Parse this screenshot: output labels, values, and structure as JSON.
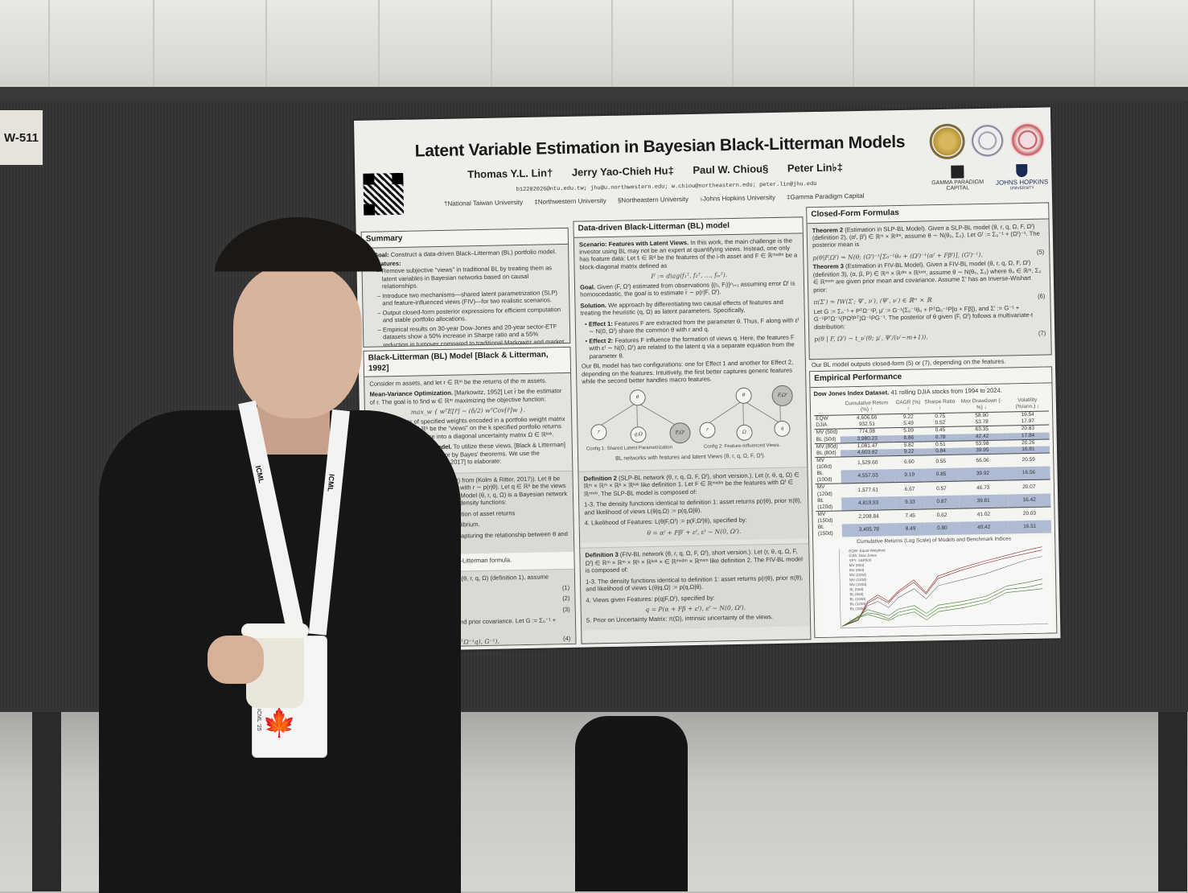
{
  "scene": {
    "description": "Researcher standing beside an academic poster at a conference poster session",
    "booth_tag": "W-511",
    "lanyard_text": "ICML",
    "badge_year": "ICML '25"
  },
  "poster": {
    "title": "Latent Variable Estimation in Bayesian Black-Litterman Models",
    "authors": [
      "Thomas Y.L. Lin†",
      "Jerry Yao-Chieh Hu‡",
      "Paul W. Chiou§",
      "Peter Lin♭‡"
    ],
    "emails": "b12202026@ntu.edu.tw;  jhu@u.northwestern.edu;  w.chiou@northeastern.edu;  peter.lin@jhu.edu",
    "affiliations": [
      "†National Taiwan University",
      "‡Northwestern University",
      "§Northeastern University",
      "♭Johns Hopkins University",
      "‡Gamma Paradigm Capital"
    ],
    "logos": {
      "gamma": "GAMMA PARADIGM",
      "gamma_sub": "CAPITAL",
      "jhu": "JOHNS HOPKINS",
      "jhu_sub": "UNIVERSITY"
    },
    "summary": {
      "heading": "Summary",
      "goal_label": "Goal:",
      "goal": "Construct a data-driven Black–Litterman (BL) portfolio model.",
      "features_label": "Features:",
      "features": [
        "Remove subjective \"views\" in traditional BL by treating them as latent variables in Bayesian networks based on causal relationships.",
        "Introduce two mechanisms—shared latent parametrization (SLP) and feature-influenced views (FIV)—for two realistic scenarios.",
        "Output closed-form posterior expressions for efficient computation and stable portfolio allocations.",
        "Empirical results on 30-year Dow-Jones and 20-year sector-ETF datasets show a 50% increase in Sharpe ratio and a 55% reduction in turnover compared to traditional Markowitz and market index."
      ]
    },
    "bl_model": {
      "heading": "Black-Litterman (BL) Model [Black & Litterman, 1992]",
      "intro": "Consider m assets, and let r ∈ ℝᵐ be the returns of the m assets.",
      "mvo_label": "Mean-Variance Optimization.",
      "mvo": "[Markowitz, 1952] Let r̄ be the estimator of r. The goal is to find w ∈ ℝᵐ maximizing the objective function:",
      "mvo_eq": "max_w { wᵀE[r̄] − (δ/2) wᵀCov[r̄]w }.",
      "views": "Consider k sets of specified weights encoded in a portfolio weight matrix P ∈ ℝᵏˣᵐ. Let q ∈ ℝᵏ be the \"views\" on the k specified portfolio returns and encode its variance into a diagonal uncertainty matrix Ω ∈ ℝᵏˣᵏ.",
      "bl_label": "Black-Litterman (BL) Model.",
      "bl": "To utilize these views, [Black & Litterman] propose a posterior estimator by Bayes' theorems. We use the formulation of [Kolm & Ritter, 2017] to elaborate:",
      "def1": "Definition 1 (BL model (θ, r, q, Ω) from (Kolm & Ritter, 2017)). Let θ be the mean of asset return r ∈ ℝᵐ with r ∼ p(r|θ). Let q ∈ ℝᵏ be the views and Ω the uncertainty matrix. BL Model (θ, r, q, Ω) is a Bayesian network composed of three fundamental density functions:",
      "def1_items": [
        "Asset Returns: p(r|θ), the distribution of asset returns",
        "Prior π(θ), reflecting market equilibrium.",
        "Likelihood L(θ|q,Ω) := p(q,Ω|θ), capturing the relationship between θ and the views."
      ],
      "formula_note": "This yields the well-known Black-Litterman formula.",
      "thm1": "Theorem 1. Given the BL model (θ, r, q, Ω) (definition 1), assume",
      "eqs": [
        {
          "eq": "r ∼ N(θ, Σ),",
          "num": "(1)"
        },
        {
          "eq": "θ ∼ N(θ₀, Σ₀),",
          "num": "(2)"
        },
        {
          "eq": "Pθ = q + ε,   ε ∼ N(0, Ω),",
          "num": "(3)"
        }
      ],
      "thm1_tail": "where Σ, Σ₀ are given intrinsic and prior covariance. Let G := Σ₀⁻¹ + PᵀΩ⁻¹P. The posterior mean is",
      "eq4": "p(θ|q,Ω) = N(G⁻¹(Σ₀⁻¹θ₀ + PᵀΩ⁻¹q), G⁻¹).",
      "eq4_num": "(4)"
    },
    "data_driven": {
      "heading": "Data-driven Black-Litterman (BL) model",
      "scenario_label": "Scenario: Features with Latent Views.",
      "scenario": "In this work, the main challenge is the investor using BL may not be an expert at quantifying views. Instead, one only has feature data: Let fᵢ ∈ ℝᵈ be the features of the i-th asset and F ∈ ℝᵐˣᵈᵐ be a block-diagonal matrix defined as",
      "scenario_eq": "F := diag(f₁ᵀ, f₂ᵀ, …, fₘᵀ).",
      "goal_label": "Goal.",
      "goal": "Given (F, Ωᶠ) estimated from observations {(rᵢ, Fᵢ)}ⁿᵢ₌₁ assuming error Ωᶠ is homoscedastic, the goal is to estimate r̄ ∼ p(r|F, Ωᶠ).",
      "solution_label": "Solution.",
      "solution": "We approach by differentiating two causal effects of features and treating the heuristic (q, Ω) as latent parameters. Specifically,",
      "effects": [
        {
          "label": "Effect 1:",
          "text": "Features F are extracted from the parameter θ. Thus, F along with εᶠ ∼ N(0, Ωᶠ) share the common θ with r and q."
        },
        {
          "label": "Effect 2:",
          "text": "Features F influence the formation of views q. Here, the features F with εᶠ ∼ N(0, Ωᶠ) are related to the latent q via a separate equation from the parameter θ."
        }
      ],
      "configs": "Our BL model has two configurations: one for Effect 1 and another for Effect 2, depending on the features. Intuitively, the first better captures generic features while the second better handles macro features.",
      "diagram": {
        "config1_nodes": [
          "θ",
          "r",
          "q,Ω",
          "F,Ωᶠ"
        ],
        "config2_nodes": [
          "θ",
          "F,Ωᶠ",
          "r",
          "Ω",
          "q"
        ],
        "config1_caption": "Config 1: Shared Latent Parametrization",
        "config2_caption": "Config 2: Feature-Influenced Views.",
        "caption": "BL networks with features and latent Views (θ, r, q, Ω, F, Ωᶠ)."
      },
      "def2": {
        "label": "Definition 2",
        "title": "(SLP-BL network (θ, r, q, Ω, F, Ωᶠ), short version.).",
        "text": "Let (r, θ, q, Ω) ∈ ℝᵐ × ℝᵐ × ℝᵏ × ℝᵏˣᵏ like definition 1. Let F ∈ ℝᵐˣᵈᵐ be the features with Ωᶠ ∈ ℝᵐˣᵐ. The SLP-BL model is composed of:",
        "items": [
          "1-3. The density functions identical to definition 1: asset returns p(r|θ), prior π(θ), and likelihood of views L(θ|q,Ω) := p(q,Ω|θ).",
          "4. Likelihood of Features: L(θ|F,Ωᶠ) := p(F,Ωᶠ|θ), specified by:"
        ],
        "eq": "θ = αᶠ + Fβᶠ + εᶠ,   εᶠ ∼ N(0, Ωᶠ)."
      },
      "def3": {
        "label": "Definition 3",
        "title": "(FIV-BL network (θ, r, q, Ω, F, Ωᶠ), short version.).",
        "text": "Let (r, θ, q, Ω, F, Ωᶠ) ∈ ℝᵐ × ℝᵐ × ℝᵏ × ℝᵏˣᵏ × ∈ ℝᵐˣᵈᵐ × ℝᵐˣᵐ like definition 2. The FIV-BL model is composed of:",
        "items": [
          "1-3. The density functions identical to definition 1: asset returns p(r|θ), prior π(θ), and likelihood of views L(θ|q,Ω) := p(q,Ω|θ).",
          "4. Views given Features: p(q|F,Ωᶠ), specified by:",
          "5. Prior on Uncertainty Matrix: π(Ω), intrinsic uncertainty of the views."
        ],
        "eq": "q = P(α + Fβ + εᶠ),   εᶠ ∼ N(0, Ωᶠ)."
      }
    },
    "closed_form": {
      "heading": "Closed-Form Formulas",
      "thm2_label": "Theorem 2",
      "thm2": "(Estimation in SLP-BL Model). Given a SLP-BL model (θ, r, q, Ω, F, Ωᶠ) (definition 2), (αᶠ, βᶠ) ∈ ℝᵐ × ℝᵈᵐ, assume θ ∼ N(θ₀, Σ₀). Let Gᶠ := Σ₀⁻¹ + (Ωᶠ)⁻¹. The posterior mean is",
      "eq5": "p(θ|F,Ωᶠ) = N(θ; (Gᶠ)⁻¹[Σ₀⁻¹θ₀ + (Ωᶠ)⁻¹(αᶠ + Fβᶠ)], (Gᶠ)⁻¹).",
      "eq5_num": "(5)",
      "thm3_label": "Theorem 3",
      "thm3": "(Estimation in FIV-BL Model). Given a FIV-BL model (θ, r, q, Ω, F, Ωᶠ) (definition 3), (α, β, P) ∈ ℝᵐ × ℝᵈᵐ × ℝᵏˣᵐ, assume θ ∼ N(θ₀, Σ₀) where θ₀ ∈ ℝᵐ, Σ₀ ∈ ℝᵐˣᵐ are given prior mean and covariance. Assume Σ′ has an Inverse-Wishart prior:",
      "eq6": "π(Σ′) = IW(Σ′; Ψ′, ν′),   (Ψ′, ν′) ∈ ℝᵐ × ℝ",
      "eq6_num": "(6)",
      "thm3_mid": "Let G := Σ₀⁻¹ + PᵀΩ⁻¹P, μ′ := G⁻¹(Σ₀⁻¹θ₀ + PᵀΩ₀⁻¹P[α + Fβ]), and Σ′ := G⁻¹ + G⁻¹PᵀΩ⁻¹(PΩᶠPᵀ)Ω⁻¹PG⁻¹. The posterior of θ given (F, Ωᶠ) follows a multivariate-t distribution:",
      "eq7": "p(θ | F, Ωᶠ) ∼ t_ν′(θ; μ′, Ψ′/(ν′−m+1)).",
      "eq7_num": "(7)",
      "note": "Our BL model outputs closed-form (5) or (7), depending on the features."
    },
    "empirical": {
      "heading": "Empirical Performance",
      "dataset_label": "Dow Jones Index Dataset.",
      "dataset": "41 rolling DJIA stocks from 1994 to 2024.",
      "columns": [
        "",
        "Cumulative Return (%) ↑",
        "CAGR (%) ↑",
        "Sharpe Ratio ↑",
        "Max Drawdown (-%) ↓",
        "Volatility (%/ann.) ↓"
      ],
      "groups": [
        [
          {
            "name": "EQW",
            "values": [
              "4,606.66",
              "9.22",
              "0.75",
              "58.90",
              "19.54"
            ],
            "highlight": false
          },
          {
            "name": "DJIA",
            "values": [
              "932.51",
              "5.49",
              "0.52",
              "53.78",
              "17.97"
            ],
            "highlight": false
          }
        ],
        [
          {
            "name": "MV (50d)",
            "values": [
              "774.08",
              "5.09",
              "0.45",
              "63.35",
              "20.83"
            ],
            "highlight": false
          },
          {
            "name": "BL (50d)",
            "values": [
              "3,980.23",
              "8.86",
              "0.78",
              "42.42",
              "17.84"
            ],
            "highlight": true
          }
        ],
        [
          {
            "name": "MV (80d)",
            "values": [
              "1,081.47",
              "5.82",
              "0.51",
              "53.98",
              "20.26"
            ],
            "highlight": false
          },
          {
            "name": "BL (80d)",
            "values": [
              "4,603.82",
              "9.22",
              "0.84",
              "39.95",
              "16.81"
            ],
            "highlight": true
          }
        ],
        [
          {
            "name": "MV (100d)",
            "values": [
              "1,529.60",
              "6.60",
              "0.55",
              "56.06",
              "20.59"
            ],
            "highlight": false
          },
          {
            "name": "BL (100d)",
            "values": [
              "4,557.03",
              "9.19",
              "0.85",
              "39.92",
              "16.56"
            ],
            "highlight": true
          }
        ],
        [
          {
            "name": "MV (120d)",
            "values": [
              "1,577.61",
              "6.67",
              "0.57",
              "46.73",
              "20.07"
            ],
            "highlight": false
          },
          {
            "name": "BL (120d)",
            "values": [
              "4,819.83",
              "9.33",
              "0.87",
              "39.81",
              "16.42"
            ],
            "highlight": true
          }
        ],
        [
          {
            "name": "MV (150d)",
            "values": [
              "2,208.84",
              "7.45",
              "0.62",
              "41.02",
              "20.03"
            ],
            "highlight": false
          },
          {
            "name": "BL (150d)",
            "values": [
              "3,405.78",
              "8.49",
              "0.80",
              "40.42",
              "16.51"
            ],
            "highlight": true
          }
        ]
      ],
      "chart": {
        "title": "Cumulative Returns (Log Scale) of Models and Benchmark Indices",
        "ylabel": "Cumulative Return (%)",
        "xlabel": "Date",
        "yticks": [
          "5309.8%",
          "3211.5%",
          "1908.6%",
          "1118.2%",
          "639.9%",
          "348.2%",
          "171.8%",
          "64.9%",
          "0.0%"
        ],
        "xticks": [
          "1996",
          "2000",
          "2004",
          "2008",
          "2012",
          "2016",
          "2020",
          "2024"
        ],
        "legend": [
          "EQW: Equal-Weighted",
          "DJIA: Dow Jones",
          "SPY: S&P500",
          "MV (50d)",
          "MV (80d)",
          "MV (100d)",
          "MV (120d)",
          "MV (150d)",
          "BL (50d)",
          "BL (80d)",
          "BL (100d)",
          "BL (120d)",
          "BL (150d)"
        ]
      }
    }
  },
  "colors": {
    "poster_bg": "#eeeeea",
    "board": "#343434",
    "table_highlight": "#aebbd2",
    "bl_lines": "#8b2c2c",
    "mv_lines": "#3f7a2c"
  }
}
